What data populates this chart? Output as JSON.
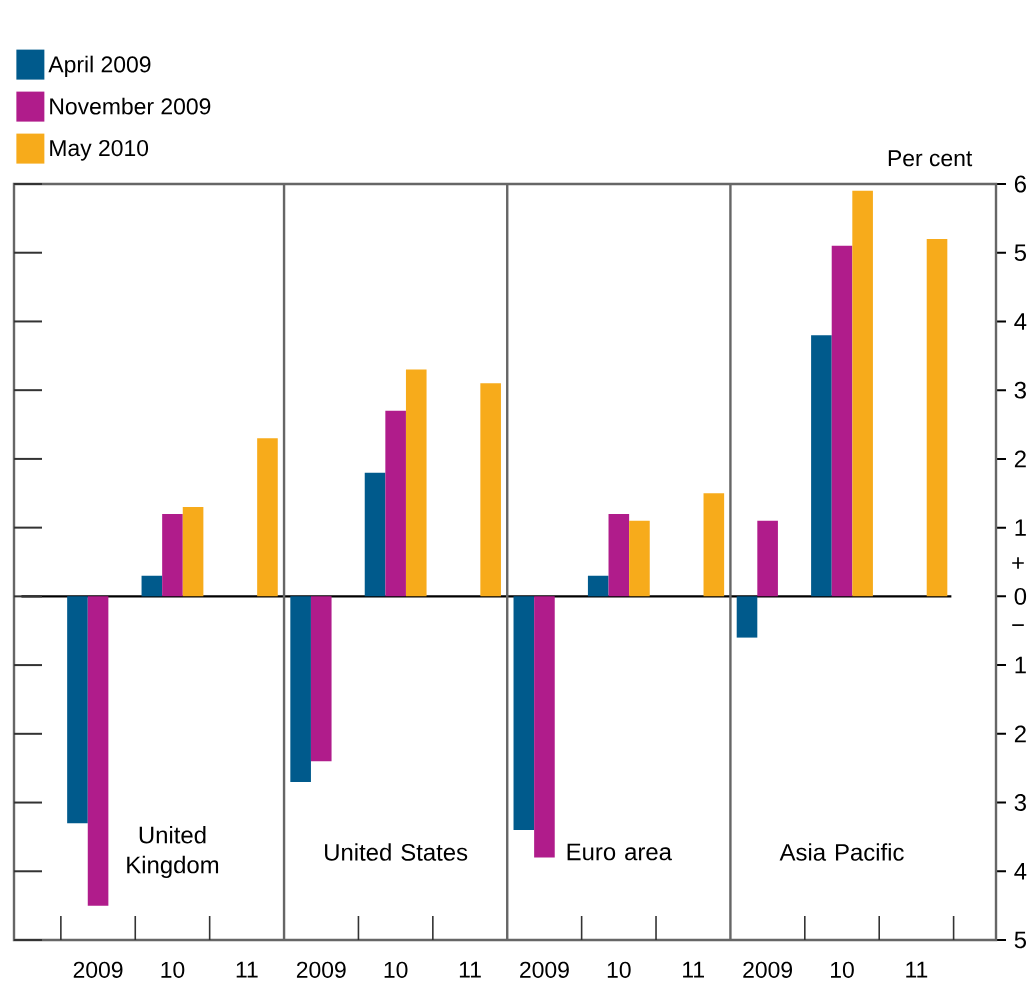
{
  "chart_data": {
    "type": "bar",
    "ylabel": "Per cent",
    "categories": [
      "2009",
      "10",
      "11",
      "2009",
      "10",
      "11",
      "2009",
      "10",
      "11",
      "2009",
      "10",
      "11"
    ],
    "series": [
      {
        "name": "April 2009",
        "color": "#005a8c",
        "values": [
          -3.3,
          0.3,
          null,
          -2.7,
          1.8,
          null,
          -3.4,
          0.3,
          null,
          -0.6,
          3.8,
          null
        ]
      },
      {
        "name": "November 2009",
        "color": "#b01c8b",
        "values": [
          -4.5,
          1.2,
          null,
          -2.4,
          2.7,
          null,
          -3.8,
          1.2,
          null,
          1.1,
          5.1,
          null
        ]
      },
      {
        "name": "May 2010",
        "color": "#f7ab1b",
        "values": [
          null,
          1.3,
          2.3,
          null,
          3.3,
          3.1,
          null,
          1.1,
          1.5,
          null,
          5.9,
          5.2
        ]
      }
    ],
    "ylim": [
      -5,
      6
    ],
    "yticks": [
      {
        "value": -5,
        "label": "5"
      },
      {
        "value": -4,
        "label": "4"
      },
      {
        "value": -3,
        "label": "3"
      },
      {
        "value": -2,
        "label": "2"
      },
      {
        "value": -1,
        "label": "1"
      },
      0,
      1,
      2,
      3,
      4,
      5,
      6
    ],
    "legend": "top left",
    "ref_lines": [
      {
        "axis": "y",
        "value": 0,
        "color": "#000000"
      }
    ],
    "annotations": [
      "United Kingdom",
      "United States",
      "Euro area",
      "Asia Pacific",
      "+",
      "−"
    ]
  }
}
